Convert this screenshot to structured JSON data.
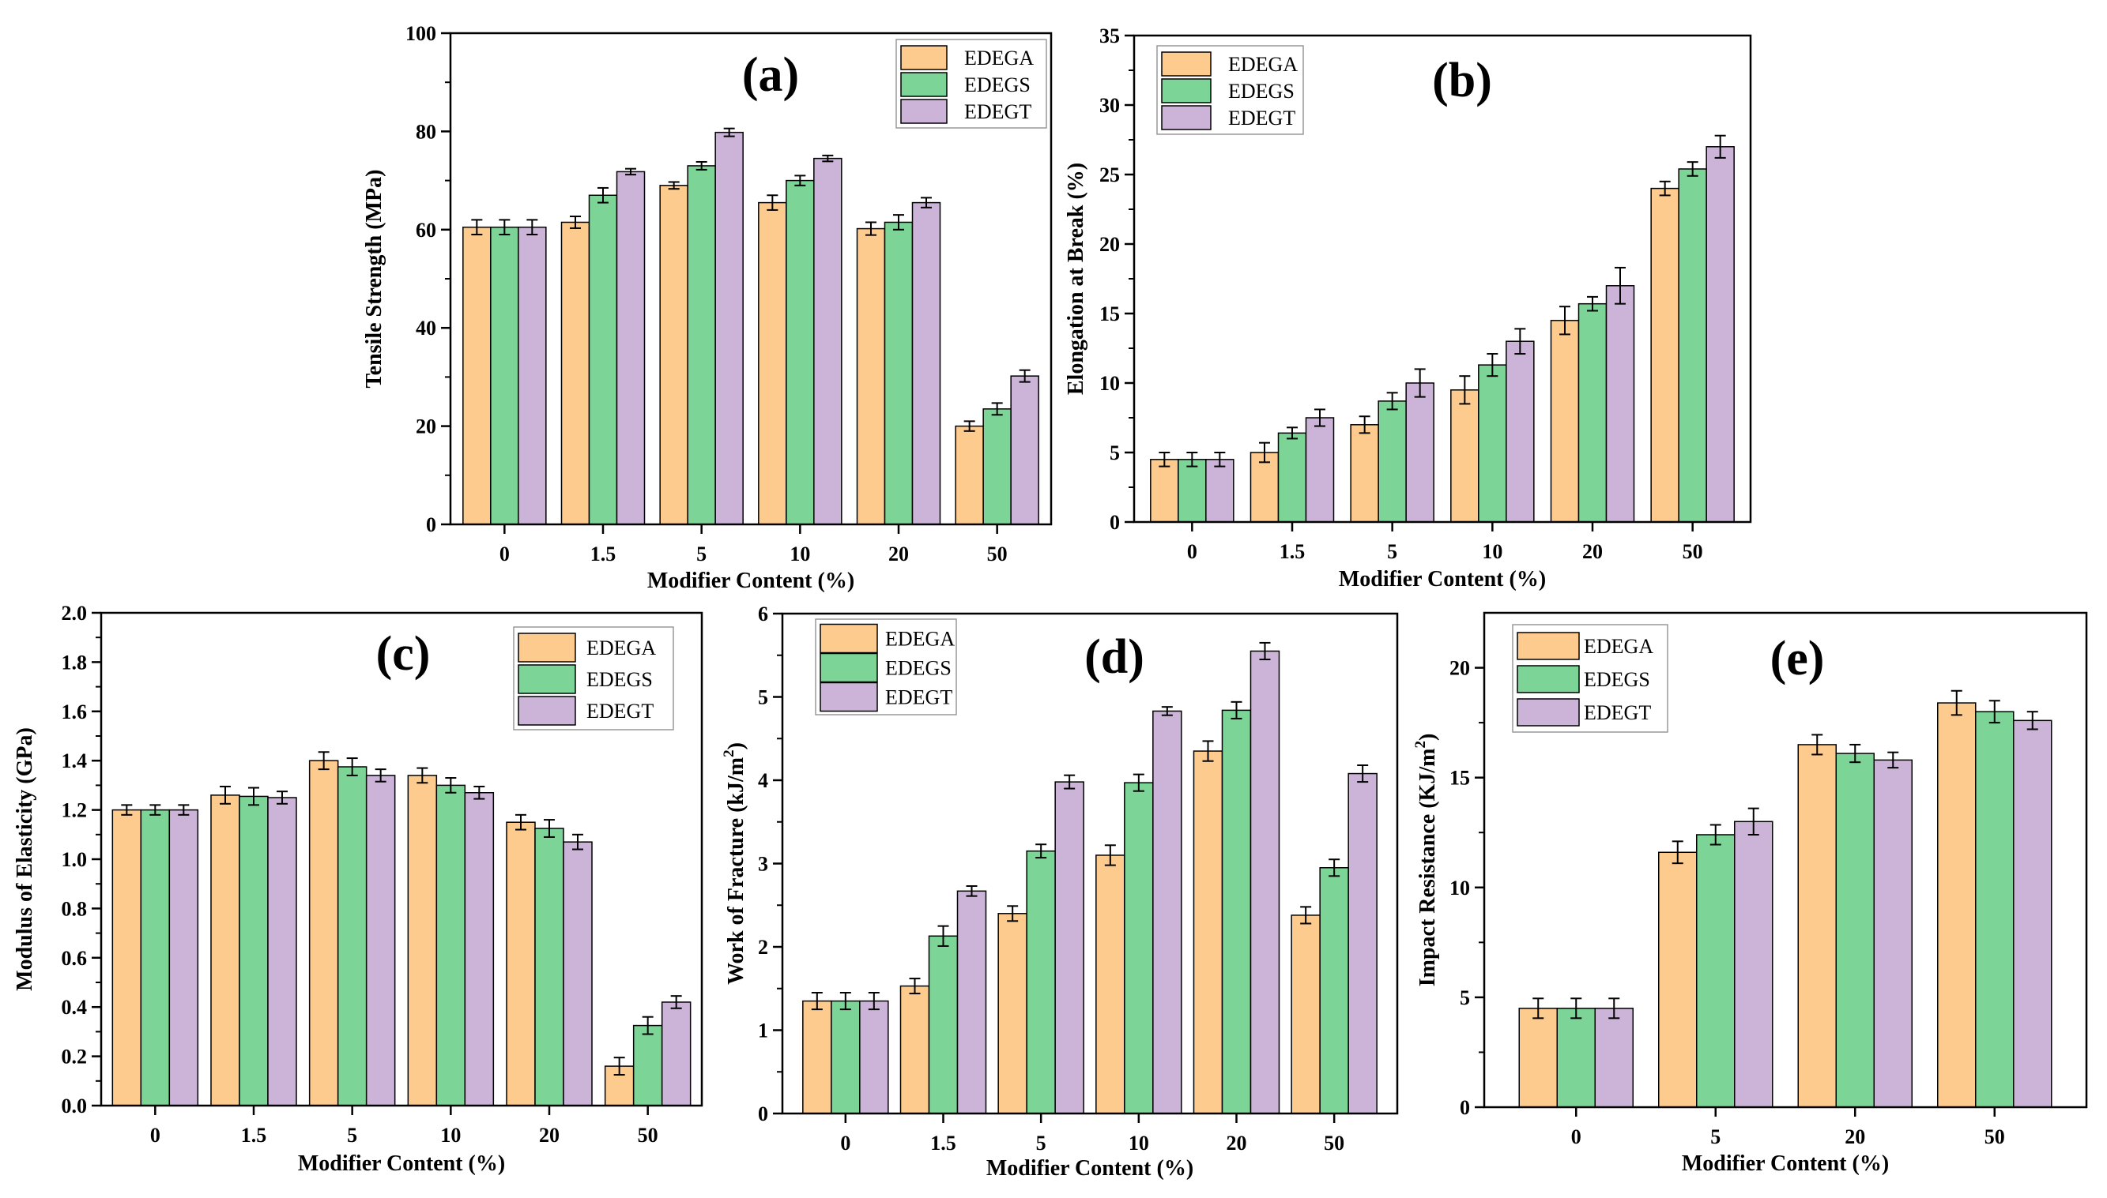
{
  "figure": "Mechanical properties vs. modifier content",
  "colors": {
    "EDEGA": "#FDCB8E",
    "EDEGS": "#7DD497",
    "EDEGT": "#CBB4D8",
    "stroke": "#000000"
  },
  "chart_data": [
    {
      "id": "a",
      "type": "bar",
      "label": "(a)",
      "xlabel": "Modifier Content (%)",
      "ylabel": "Tensile Strength (MPa)",
      "categories": [
        "0",
        "1.5",
        "5",
        "10",
        "20",
        "50"
      ],
      "ylim": [
        0,
        100
      ],
      "yticks": [
        0,
        20,
        40,
        60,
        80,
        100
      ],
      "ytick_labels": [
        "0",
        "20",
        "40",
        "60",
        "80",
        "100"
      ],
      "legend": "top-right",
      "series": [
        {
          "name": "EDEGA",
          "values": [
            60.5,
            61.5,
            69,
            65.5,
            60.2,
            20
          ],
          "errors": [
            1.5,
            1.2,
            0.7,
            1.5,
            1.3,
            1.0
          ]
        },
        {
          "name": "EDEGS",
          "values": [
            60.5,
            67,
            73,
            70,
            61.5,
            23.5
          ],
          "errors": [
            1.5,
            1.5,
            0.8,
            1.0,
            1.5,
            1.2
          ]
        },
        {
          "name": "EDEGT",
          "values": [
            60.5,
            71.8,
            79.8,
            74.5,
            65.5,
            30.2
          ],
          "errors": [
            1.5,
            0.6,
            0.8,
            0.6,
            1.0,
            1.2
          ]
        }
      ]
    },
    {
      "id": "b",
      "type": "bar",
      "label": "(b)",
      "xlabel": "Modifier Content (%)",
      "ylabel": "Elongation at Break  (%)",
      "categories": [
        "0",
        "1.5",
        "5",
        "10",
        "20",
        "50"
      ],
      "ylim": [
        0,
        35
      ],
      "yticks": [
        0,
        5,
        10,
        15,
        20,
        25,
        30,
        35
      ],
      "ytick_labels": [
        "0",
        "5",
        "10",
        "15",
        "20",
        "25",
        "30",
        "35"
      ],
      "legend": "top-left",
      "series": [
        {
          "name": "EDEGA",
          "values": [
            4.5,
            5,
            7,
            9.5,
            14.5,
            24
          ],
          "errors": [
            0.5,
            0.7,
            0.6,
            1.0,
            1.0,
            0.5
          ]
        },
        {
          "name": "EDEGS",
          "values": [
            4.5,
            6.4,
            8.7,
            11.3,
            15.7,
            25.4
          ],
          "errors": [
            0.5,
            0.4,
            0.6,
            0.8,
            0.5,
            0.5
          ]
        },
        {
          "name": "EDEGT",
          "values": [
            4.5,
            7.5,
            10,
            13,
            17,
            27
          ],
          "errors": [
            0.5,
            0.6,
            1.0,
            0.9,
            1.3,
            0.8
          ]
        }
      ]
    },
    {
      "id": "c",
      "type": "bar",
      "label": "(c)",
      "xlabel": "Modifier Content (%)",
      "ylabel": "Modulus of Elasticity  (GPa)",
      "categories": [
        "0",
        "1.5",
        "5",
        "10",
        "20",
        "50"
      ],
      "ylim": [
        0,
        2.0
      ],
      "yticks": [
        0,
        0.2,
        0.4,
        0.6,
        0.8,
        1.0,
        1.2,
        1.4,
        1.6,
        1.8,
        2.0
      ],
      "ytick_labels": [
        "0.0",
        "0.2",
        "0.4",
        "0.6",
        "0.8",
        "1.0",
        "1.2",
        "1.4",
        "1.6",
        "1.8",
        "2.0"
      ],
      "legend": "top-right",
      "series": [
        {
          "name": "EDEGA",
          "values": [
            1.2,
            1.26,
            1.4,
            1.34,
            1.15,
            0.16
          ],
          "errors": [
            0.02,
            0.035,
            0.035,
            0.03,
            0.03,
            0.035
          ]
        },
        {
          "name": "EDEGS",
          "values": [
            1.2,
            1.255,
            1.375,
            1.3,
            1.125,
            0.325
          ],
          "errors": [
            0.02,
            0.035,
            0.035,
            0.03,
            0.035,
            0.035
          ]
        },
        {
          "name": "EDEGT",
          "values": [
            1.2,
            1.25,
            1.34,
            1.27,
            1.07,
            0.42
          ],
          "errors": [
            0.02,
            0.025,
            0.025,
            0.025,
            0.03,
            0.025
          ]
        }
      ]
    },
    {
      "id": "d",
      "type": "bar",
      "label": "(d)",
      "xlabel": "Modifier Content (%)",
      "ylabel": "Work of Fracture (kJ/m",
      "ylabel_sup": "2",
      "ylabel_end": ")",
      "categories": [
        "0",
        "1.5",
        "5",
        "10",
        "20",
        "50"
      ],
      "ylim": [
        0,
        6
      ],
      "yticks": [
        0,
        1,
        2,
        3,
        4,
        5,
        6
      ],
      "ytick_labels": [
        "0",
        "1",
        "2",
        "3",
        "4",
        "5",
        "6"
      ],
      "legend": "top-left",
      "series": [
        {
          "name": "EDEGA",
          "values": [
            1.35,
            1.53,
            2.4,
            3.1,
            4.35,
            2.38
          ],
          "errors": [
            0.1,
            0.09,
            0.09,
            0.12,
            0.12,
            0.1
          ]
        },
        {
          "name": "EDEGS",
          "values": [
            1.35,
            2.13,
            3.15,
            3.97,
            4.84,
            2.95
          ],
          "errors": [
            0.1,
            0.12,
            0.08,
            0.1,
            0.1,
            0.1
          ]
        },
        {
          "name": "EDEGT",
          "values": [
            1.35,
            2.67,
            3.98,
            4.83,
            5.55,
            4.08
          ],
          "errors": [
            0.1,
            0.06,
            0.08,
            0.05,
            0.1,
            0.1
          ]
        }
      ]
    },
    {
      "id": "e",
      "type": "bar",
      "label": "(e)",
      "xlabel": "Modifier Content (%)",
      "ylabel": "Impact Resistance (KJ/m",
      "ylabel_sup": "2",
      "ylabel_end": ")",
      "categories": [
        "0",
        "5",
        "20",
        "50"
      ],
      "ylim": [
        0,
        22.5
      ],
      "yticks": [
        0,
        5,
        10,
        15,
        20
      ],
      "ytick_labels": [
        "0",
        "5",
        "10",
        "15",
        "20"
      ],
      "legend": "top-left",
      "series": [
        {
          "name": "EDEGA",
          "values": [
            4.5,
            11.6,
            16.5,
            18.4
          ],
          "errors": [
            0.45,
            0.5,
            0.45,
            0.55
          ]
        },
        {
          "name": "EDEGS",
          "values": [
            4.5,
            12.4,
            16.1,
            18
          ],
          "errors": [
            0.45,
            0.45,
            0.4,
            0.5
          ]
        },
        {
          "name": "EDEGT",
          "values": [
            4.5,
            13,
            15.8,
            17.6
          ],
          "errors": [
            0.45,
            0.6,
            0.35,
            0.4
          ]
        }
      ]
    }
  ]
}
